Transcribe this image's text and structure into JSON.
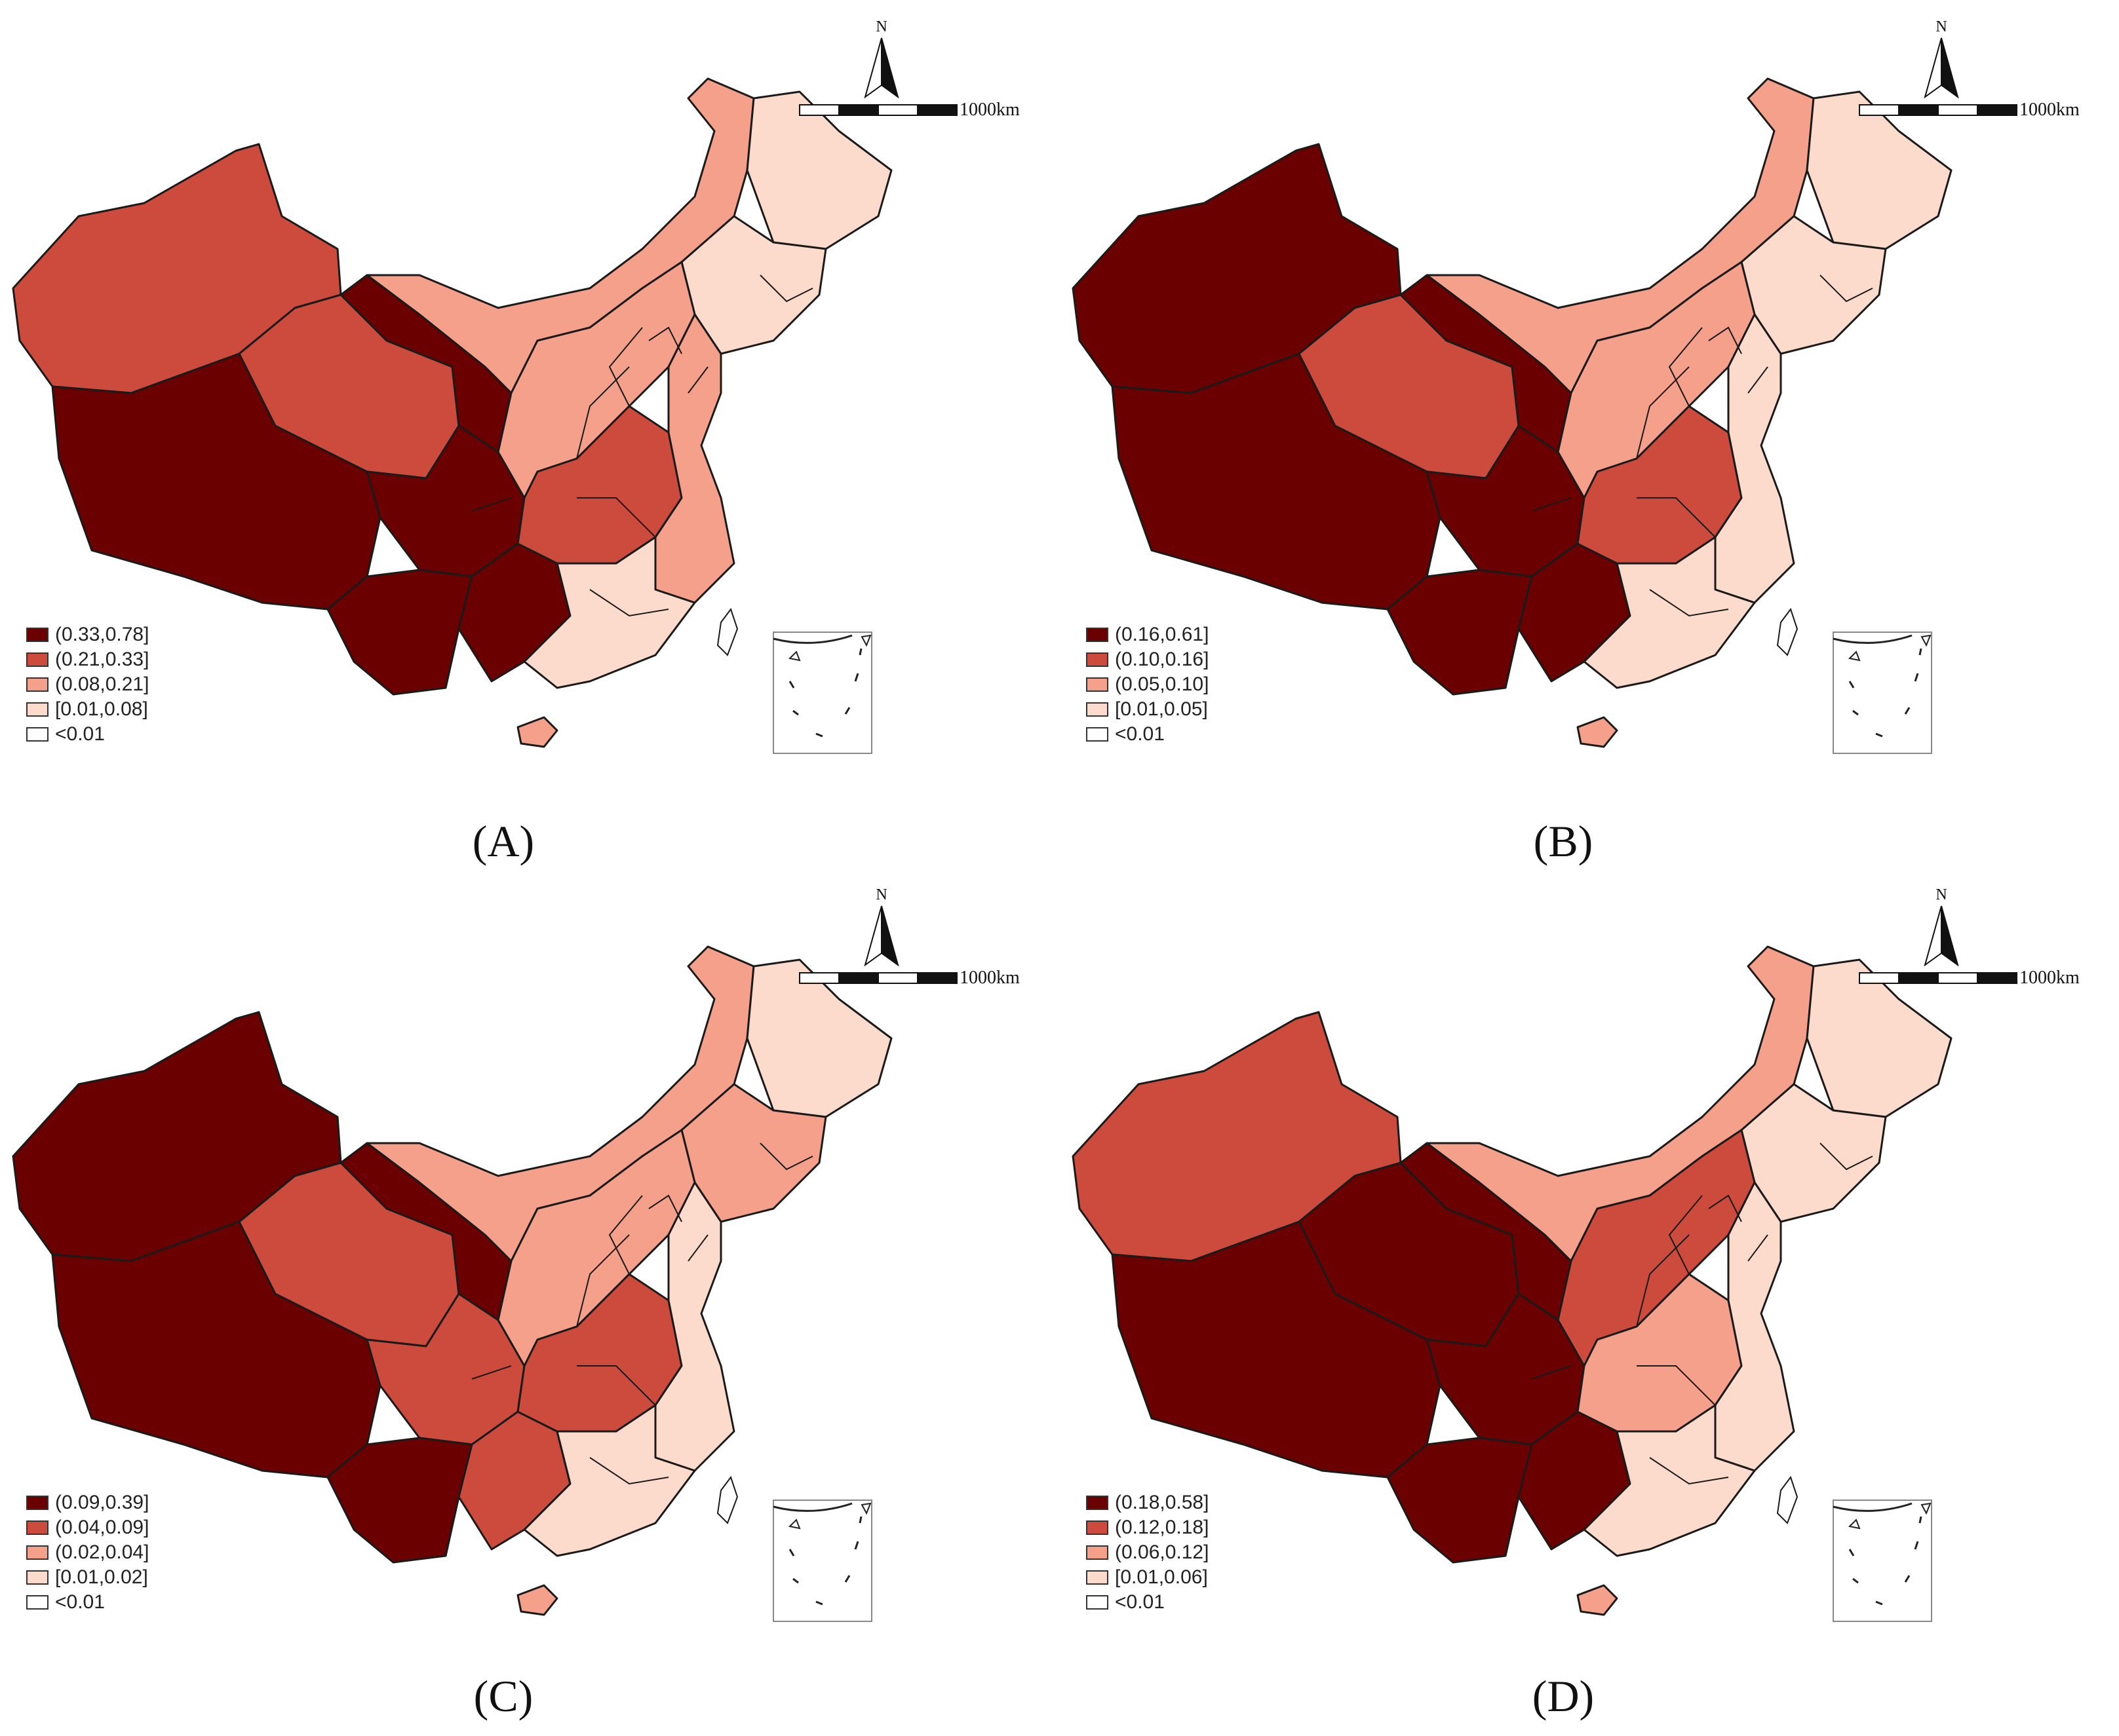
{
  "figure": {
    "panels": [
      {
        "id": "A",
        "label": "(A)",
        "legend": [
          {
            "label": "(0.33,0.78]",
            "color": "#6b0000"
          },
          {
            "label": "(0.21,0.33]",
            "color": "#cc4b3c"
          },
          {
            "label": "(0.08,0.21]",
            "color": "#f4a08a"
          },
          {
            "label": "[0.01,0.08]",
            "color": "#fddbcc"
          },
          {
            "label": "<0.01",
            "color": "#ffffff"
          }
        ],
        "scale_label": "1000km",
        "north_label": "N",
        "regions": {
          "xinjiang": 1,
          "tibet": 0,
          "qinghai": 1,
          "gansu": 0,
          "sichuan": 0,
          "yunnan": 0,
          "inner_mongolia": 2,
          "heilongjiang": 3,
          "northeast": 3,
          "north": 2,
          "central": 1,
          "east": 2,
          "south": 3,
          "southwest": 0,
          "hainan": 2
        }
      },
      {
        "id": "B",
        "label": "(B)",
        "legend": [
          {
            "label": "(0.16,0.61]",
            "color": "#6b0000"
          },
          {
            "label": "(0.10,0.16]",
            "color": "#cc4b3c"
          },
          {
            "label": "(0.05,0.10]",
            "color": "#f4a08a"
          },
          {
            "label": "[0.01,0.05]",
            "color": "#fddbcc"
          },
          {
            "label": "<0.01",
            "color": "#ffffff"
          }
        ],
        "scale_label": "1000km",
        "north_label": "N",
        "regions": {
          "xinjiang": 0,
          "tibet": 0,
          "qinghai": 1,
          "gansu": 0,
          "sichuan": 0,
          "yunnan": 0,
          "inner_mongolia": 2,
          "heilongjiang": 3,
          "northeast": 3,
          "north": 2,
          "central": 1,
          "east": 3,
          "south": 3,
          "southwest": 0,
          "hainan": 2
        }
      },
      {
        "id": "C",
        "label": "(C)",
        "legend": [
          {
            "label": "(0.09,0.39]",
            "color": "#6b0000"
          },
          {
            "label": "(0.04,0.09]",
            "color": "#cc4b3c"
          },
          {
            "label": "(0.02,0.04]",
            "color": "#f4a08a"
          },
          {
            "label": "[0.01,0.02]",
            "color": "#fddbcc"
          },
          {
            "label": "<0.01",
            "color": "#ffffff"
          }
        ],
        "scale_label": "1000km",
        "north_label": "N",
        "regions": {
          "xinjiang": 0,
          "tibet": 0,
          "qinghai": 1,
          "gansu": 0,
          "sichuan": 1,
          "yunnan": 0,
          "inner_mongolia": 2,
          "heilongjiang": 3,
          "northeast": 2,
          "north": 2,
          "central": 1,
          "east": 3,
          "south": 3,
          "southwest": 1,
          "hainan": 2
        }
      },
      {
        "id": "D",
        "label": "(D)",
        "legend": [
          {
            "label": "(0.18,0.58]",
            "color": "#6b0000"
          },
          {
            "label": "(0.12,0.18]",
            "color": "#cc4b3c"
          },
          {
            "label": "(0.06,0.12]",
            "color": "#f4a08a"
          },
          {
            "label": "[0.01,0.06]",
            "color": "#fddbcc"
          },
          {
            "label": "<0.01",
            "color": "#ffffff"
          }
        ],
        "scale_label": "1000km",
        "north_label": "N",
        "regions": {
          "xinjiang": 1,
          "tibet": 0,
          "qinghai": 0,
          "gansu": 0,
          "sichuan": 0,
          "yunnan": 0,
          "inner_mongolia": 2,
          "heilongjiang": 3,
          "northeast": 3,
          "north": 1,
          "central": 2,
          "east": 3,
          "south": 3,
          "southwest": 0,
          "hainan": 2
        }
      }
    ]
  }
}
